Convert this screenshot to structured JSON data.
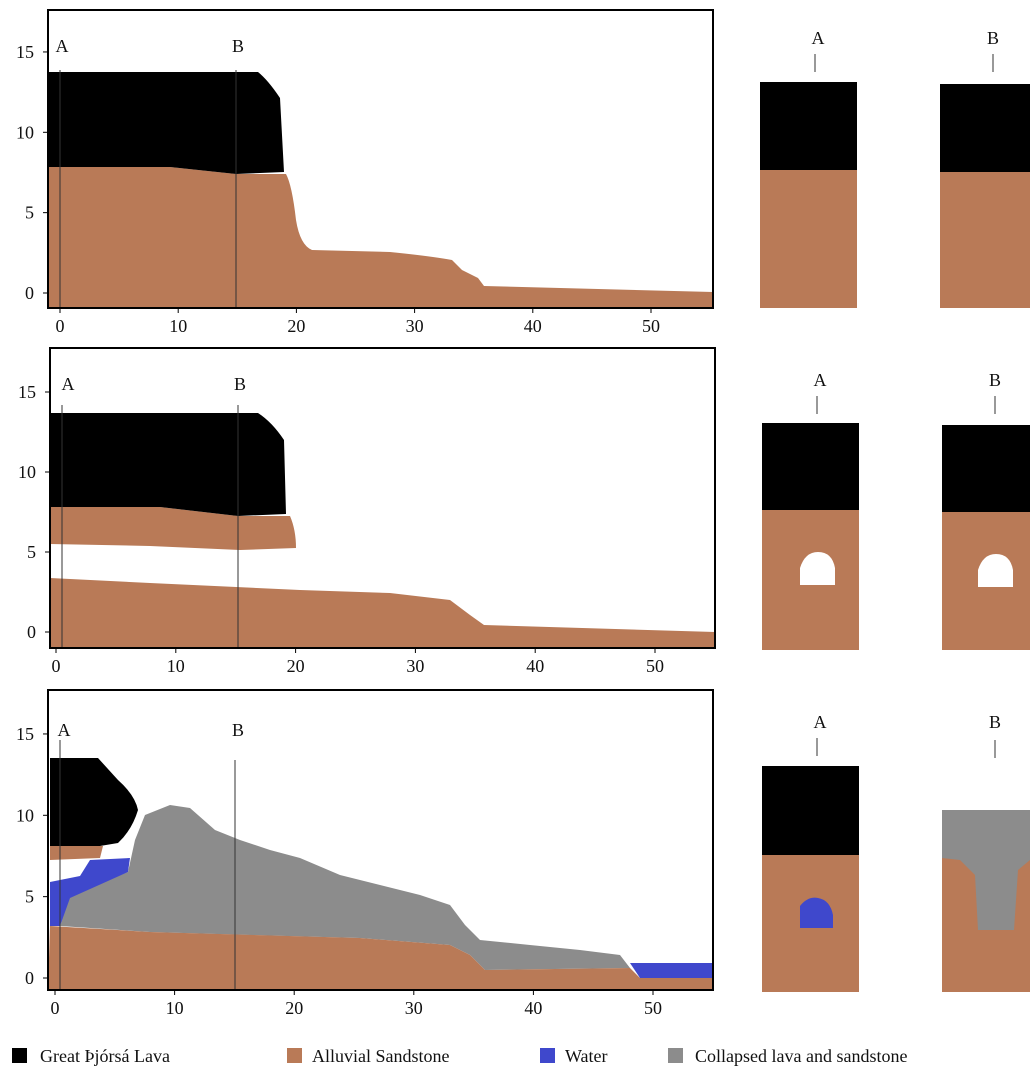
{
  "panels": [
    {
      "x_ticks": [
        0,
        10,
        20,
        30,
        40,
        50
      ],
      "y_ticks": [
        0,
        5,
        10,
        15
      ],
      "profile_labels": [
        "A",
        "B"
      ],
      "section_labels": [
        "A",
        "B"
      ]
    },
    {
      "x_ticks": [
        0,
        10,
        20,
        30,
        40,
        50
      ],
      "y_ticks": [
        0,
        5,
        10,
        15
      ],
      "profile_labels": [
        "A",
        "B"
      ],
      "section_labels": [
        "A",
        "B"
      ]
    },
    {
      "x_ticks": [
        0,
        10,
        20,
        30,
        40,
        50
      ],
      "y_ticks": [
        0,
        5,
        10,
        15
      ],
      "profile_labels": [
        "A",
        "B"
      ],
      "section_labels": [
        "A",
        "B"
      ]
    }
  ],
  "legend": [
    {
      "label": "Great Þjórsá Lava",
      "color": "#000000"
    },
    {
      "label": "Alluvial Sandstone",
      "color": "#b97a57"
    },
    {
      "label": "Water",
      "color": "#3f48cc"
    },
    {
      "label": "Collapsed lava and sandstone",
      "color": "#8c8c8c"
    }
  ]
}
